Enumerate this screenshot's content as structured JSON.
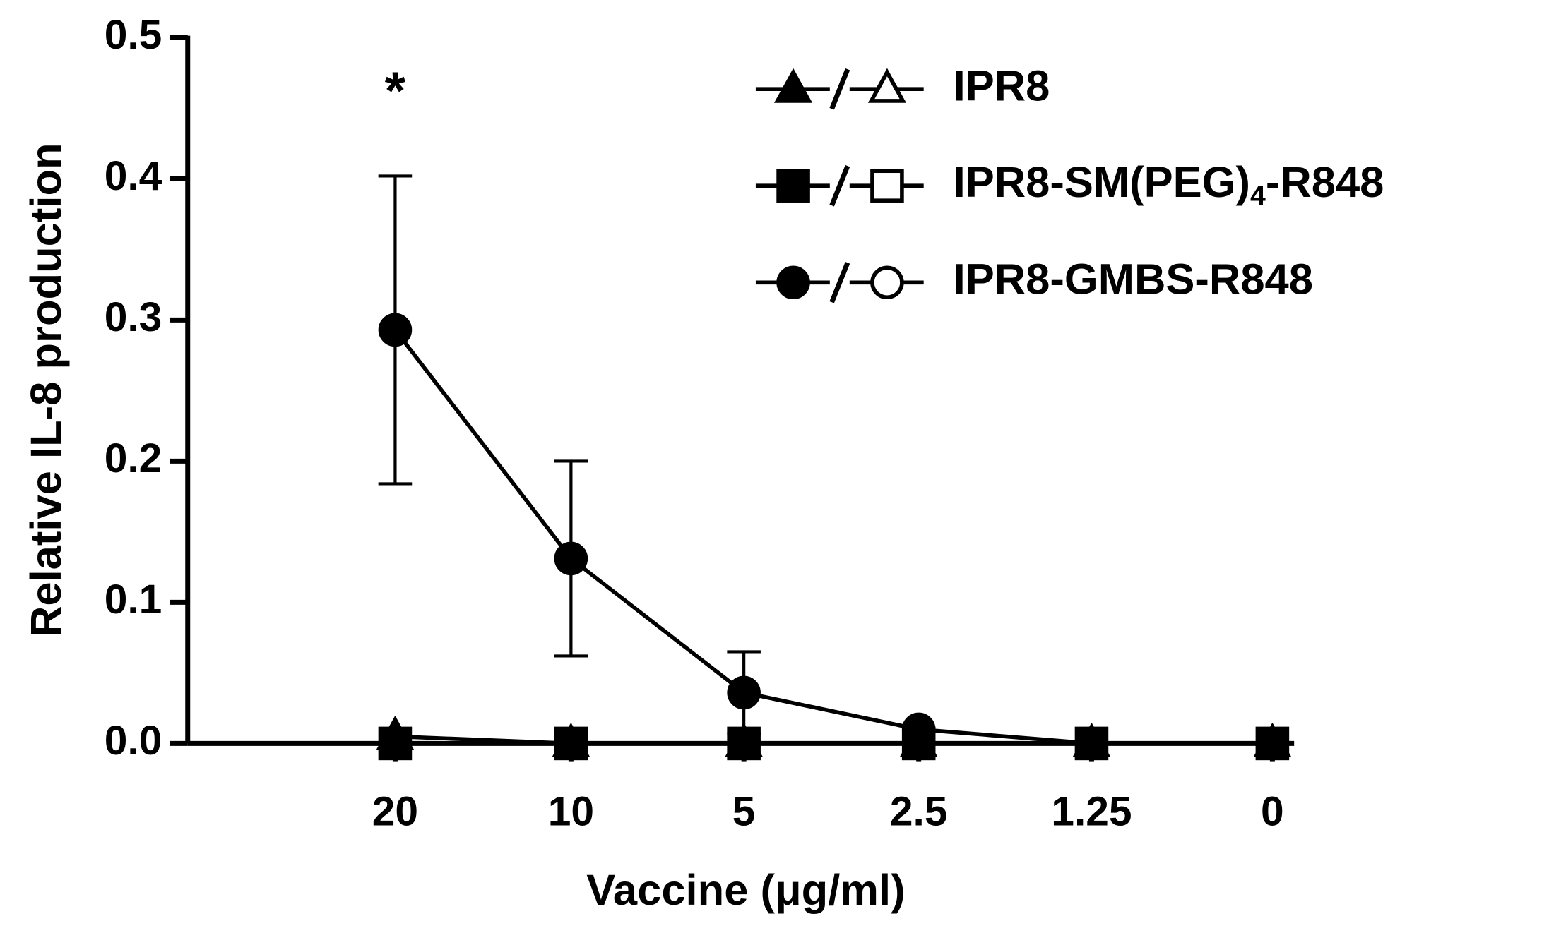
{
  "chart_data": {
    "type": "line",
    "x_label": "Vaccine (μg/ml)",
    "y_label": "Relative IL-8 production",
    "annotation": "*",
    "categories": [
      "20",
      "10",
      "5",
      "2.5",
      "1.25",
      "0"
    ],
    "ylim": [
      0,
      0.5
    ],
    "yticks": [
      {
        "value": 0,
        "label": "0.0"
      },
      0.1,
      0.2,
      0.3,
      0.4,
      0.5
    ],
    "legend": "upper right",
    "series": [
      {
        "name": "IPR8",
        "color": "#000000",
        "marker": "triangle",
        "values": [
          0.005,
          0,
          0,
          0,
          0,
          0
        ]
      },
      {
        "name": "IPR8-SM(PEG)4-R848",
        "color": "#000000",
        "marker": "square",
        "values": [
          0,
          0,
          0,
          0,
          0,
          0
        ]
      },
      {
        "name": "IPR8-GMBS-R848",
        "color": "#000000",
        "marker": "circle",
        "values": [
          0.293,
          0.131,
          0.036,
          0.01,
          0,
          0
        ],
        "errors": [
          0.109,
          0.069,
          0.029,
          0,
          0,
          0
        ]
      }
    ]
  }
}
